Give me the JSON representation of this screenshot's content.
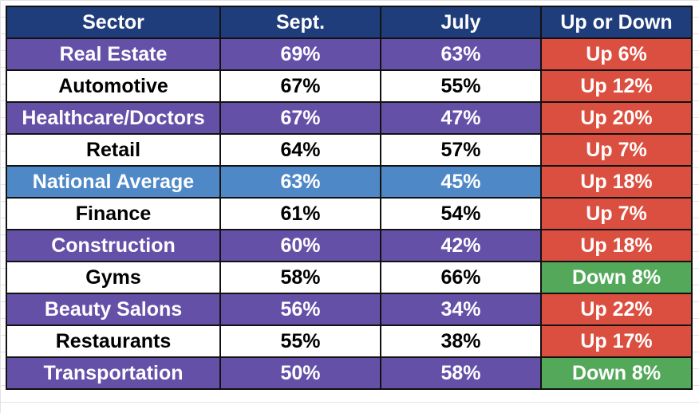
{
  "colors": {
    "header_bg": "#1f3d7a",
    "row_purple": "#6550a8",
    "row_white": "#ffffff",
    "row_blue": "#4f88c6",
    "up_red": "#db4f40",
    "down_green": "#53a85a"
  },
  "table": {
    "headers": [
      "Sector",
      "Sept.",
      "July",
      "Up or Down"
    ],
    "rows": [
      {
        "sector": "Real Estate",
        "sept": "69%",
        "july": "63%",
        "change": "Up 6%",
        "style": "purple",
        "direction": "up"
      },
      {
        "sector": "Automotive",
        "sept": "67%",
        "july": "55%",
        "change": "Up 12%",
        "style": "white",
        "direction": "up"
      },
      {
        "sector": "Healthcare/Doctors",
        "sept": "67%",
        "july": "47%",
        "change": "Up 20%",
        "style": "purple",
        "direction": "up"
      },
      {
        "sector": "Retail",
        "sept": "64%",
        "july": "57%",
        "change": "Up 7%",
        "style": "white",
        "direction": "up"
      },
      {
        "sector": "National Average",
        "sept": "63%",
        "july": "45%",
        "change": "Up 18%",
        "style": "blue",
        "direction": "up"
      },
      {
        "sector": "Finance",
        "sept": "61%",
        "july": "54%",
        "change": "Up 7%",
        "style": "white",
        "direction": "up"
      },
      {
        "sector": "Construction",
        "sept": "60%",
        "july": "42%",
        "change": "Up 18%",
        "style": "purple",
        "direction": "up"
      },
      {
        "sector": "Gyms",
        "sept": "58%",
        "july": "66%",
        "change": "Down 8%",
        "style": "white",
        "direction": "down"
      },
      {
        "sector": "Beauty Salons",
        "sept": "56%",
        "july": "34%",
        "change": "Up 22%",
        "style": "purple",
        "direction": "up"
      },
      {
        "sector": "Restaurants",
        "sept": "55%",
        "july": "38%",
        "change": "Up 17%",
        "style": "white",
        "direction": "up"
      },
      {
        "sector": "Transportation",
        "sept": "50%",
        "july": "58%",
        "change": "Down 8%",
        "style": "purple",
        "direction": "down"
      }
    ]
  }
}
